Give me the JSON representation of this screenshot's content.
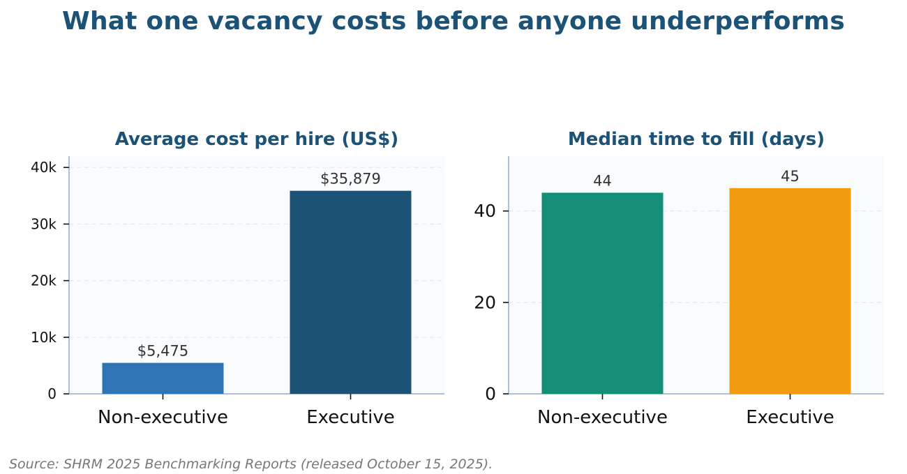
{
  "title": "What one vacancy costs before anyone underperforms",
  "source": "Source: SHRM 2025 Benchmarking Reports (released October 15, 2025).",
  "chart_data": [
    {
      "type": "bar",
      "title": "Average cost per hire (US$)",
      "categories": [
        "Non-executive",
        "Executive"
      ],
      "values": [
        5475,
        35879
      ],
      "value_labels": [
        "$5,475",
        "$35,879"
      ],
      "colors": [
        "#2e75b6",
        "#1b5276"
      ],
      "ylim": [
        0,
        42000
      ],
      "yticks": [
        0,
        10000,
        20000,
        30000,
        40000
      ],
      "ytick_labels": [
        "0",
        "10k",
        "20k",
        "30k",
        "40k"
      ],
      "grid": true,
      "xlabel": "",
      "ylabel": ""
    },
    {
      "type": "bar",
      "title": "Median time to fill (days)",
      "categories": [
        "Non-executive",
        "Executive"
      ],
      "values": [
        44,
        45
      ],
      "value_labels": [
        "44",
        "45"
      ],
      "colors": [
        "#148f77",
        "#f39c12"
      ],
      "ylim": [
        0,
        52
      ],
      "yticks": [
        0,
        20,
        40
      ],
      "ytick_labels": [
        "0",
        "20",
        "40"
      ],
      "grid": true,
      "xlabel": "",
      "ylabel": ""
    }
  ]
}
